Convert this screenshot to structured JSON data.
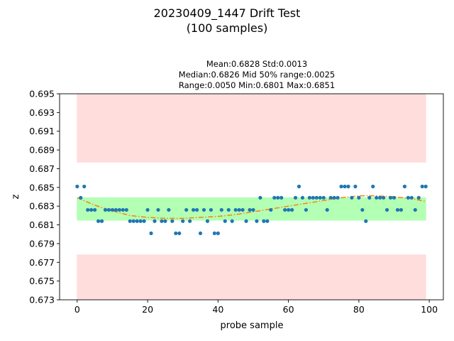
{
  "figure": {
    "title_line1": "20230409_1447 Drift Test",
    "title_line2": "(100 samples)"
  },
  "stats": {
    "line1": "Mean:0.6828  Std:0.0013",
    "line2": "Median:0.6826  Mid 50% range:0.0025",
    "line3": "Range:0.0050  Min:0.6801  Max:0.6851"
  },
  "chart_data": {
    "type": "scatter",
    "xlabel": "probe sample",
    "ylabel": "z",
    "xlim": [
      -5,
      104
    ],
    "ylim": [
      0.673,
      0.695
    ],
    "x_ticks": [
      0,
      20,
      40,
      60,
      80,
      100
    ],
    "y_ticks": [
      0.673,
      0.675,
      0.677,
      0.679,
      0.681,
      0.683,
      0.685,
      0.687,
      0.689,
      0.691,
      0.693,
      0.695
    ],
    "y_tick_labels": [
      "0.673",
      "0.675",
      "0.677",
      "0.679",
      "0.681",
      "0.683",
      "0.685",
      "0.687",
      "0.689",
      "0.691",
      "0.693",
      "0.695"
    ],
    "grid": false,
    "bands": [
      {
        "name": "upper-limit",
        "x": [
          0,
          99
        ],
        "y": [
          0.6877,
          0.695
        ],
        "color": "#ffdddd"
      },
      {
        "name": "target",
        "x": [
          0,
          99
        ],
        "y": [
          0.6815,
          0.6839
        ],
        "color": "#b3ffb3"
      },
      {
        "name": "lower-limit",
        "x": [
          0,
          99
        ],
        "y": [
          0.673,
          0.6778
        ],
        "color": "#ffdddd"
      }
    ],
    "series": [
      {
        "marker_color": "#1f77b4",
        "x": [
          0,
          1,
          2,
          3,
          4,
          5,
          6,
          7,
          8,
          9,
          10,
          11,
          12,
          13,
          14,
          15,
          16,
          17,
          18,
          19,
          20,
          21,
          22,
          23,
          24,
          25,
          26,
          27,
          28,
          29,
          30,
          31,
          32,
          33,
          34,
          35,
          36,
          37,
          38,
          39,
          40,
          41,
          42,
          43,
          44,
          45,
          46,
          47,
          48,
          49,
          50,
          51,
          52,
          53,
          54,
          55,
          56,
          57,
          58,
          59,
          60,
          61,
          62,
          63,
          64,
          65,
          66,
          67,
          68,
          69,
          70,
          71,
          72,
          73,
          74,
          75,
          76,
          77,
          78,
          79,
          80,
          81,
          82,
          83,
          84,
          85,
          86,
          87,
          88,
          89,
          90,
          91,
          92,
          93,
          94,
          95,
          96,
          97,
          98,
          99
        ],
        "y": [
          0.6851,
          0.6839,
          0.6851,
          0.6826,
          0.6826,
          0.6826,
          0.6814,
          0.6814,
          0.6826,
          0.6826,
          0.6826,
          0.6826,
          0.6826,
          0.6826,
          0.6826,
          0.6814,
          0.6814,
          0.6814,
          0.6814,
          0.6814,
          0.6826,
          0.6801,
          0.6814,
          0.6826,
          0.6814,
          0.6814,
          0.6826,
          0.6814,
          0.6801,
          0.6801,
          0.6814,
          0.6826,
          0.6814,
          0.6826,
          0.6826,
          0.6801,
          0.6826,
          0.6814,
          0.6826,
          0.6801,
          0.6801,
          0.6826,
          0.6814,
          0.6826,
          0.6814,
          0.6826,
          0.6826,
          0.6826,
          0.6814,
          0.6826,
          0.6826,
          0.6814,
          0.6839,
          0.6814,
          0.6814,
          0.6826,
          0.6839,
          0.6839,
          0.6839,
          0.6826,
          0.6826,
          0.6826,
          0.6839,
          0.6851,
          0.6839,
          0.6826,
          0.6839,
          0.6839,
          0.6839,
          0.6839,
          0.6839,
          0.6826,
          0.6839,
          0.6839,
          0.6839,
          0.6851,
          0.6851,
          0.6851,
          0.6839,
          0.6851,
          0.6839,
          0.6826,
          0.6814,
          0.6839,
          0.6851,
          0.6839,
          0.6839,
          0.6839,
          0.6826,
          0.6839,
          0.6839,
          0.6826,
          0.6826,
          0.6851,
          0.6839,
          0.6839,
          0.6826,
          0.6839,
          0.6851,
          0.6851
        ]
      },
      {
        "line_color": "#ff7f0e",
        "line_style": "dash-dot",
        "fit": "cubic",
        "x": [
          0,
          5,
          10,
          15,
          20,
          25,
          30,
          35,
          40,
          45,
          50,
          55,
          60,
          65,
          70,
          75,
          80,
          85,
          90,
          95,
          99
        ],
        "y": [
          0.6839,
          0.6831,
          0.6825,
          0.682,
          0.6818,
          0.6817,
          0.6817,
          0.6818,
          0.6819,
          0.6821,
          0.6824,
          0.6827,
          0.683,
          0.6833,
          0.6836,
          0.6839,
          0.6841,
          0.6841,
          0.684,
          0.6838,
          0.6835
        ]
      }
    ]
  }
}
